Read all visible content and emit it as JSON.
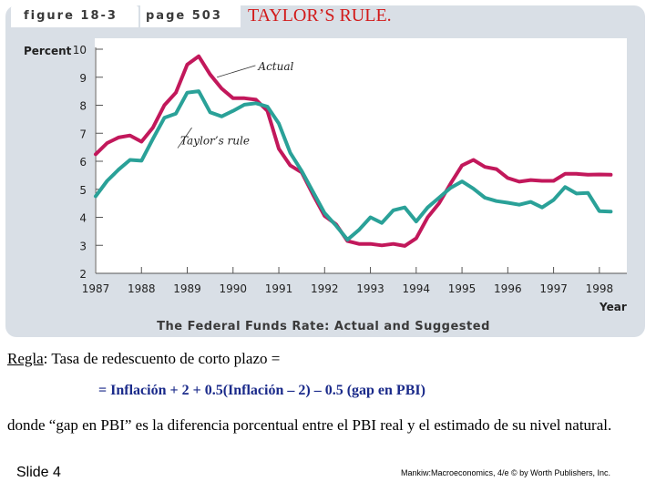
{
  "header": {
    "figure_label": "figure 18-3",
    "page_label": "page 503",
    "slide_title": "TAYLOR’S RULE."
  },
  "chart_data": {
    "type": "line",
    "title": "The Federal Funds Rate: Actual and Suggested",
    "ylabel": "Percent",
    "xlabel": "Year",
    "ylim": [
      2,
      10
    ],
    "xlim": [
      1987,
      1998.6
    ],
    "yticks": [
      2,
      3,
      4,
      5,
      6,
      7,
      8,
      9,
      10
    ],
    "xticks": [
      1987,
      1988,
      1989,
      1990,
      1991,
      1992,
      1993,
      1994,
      1995,
      1996,
      1997,
      1998
    ],
    "series": [
      {
        "name": "Actual",
        "color": "#c2185b",
        "points": [
          [
            1987.0,
            6.25
          ],
          [
            1987.25,
            6.65
          ],
          [
            1987.5,
            6.85
          ],
          [
            1987.75,
            6.92
          ],
          [
            1988.0,
            6.7
          ],
          [
            1988.25,
            7.2
          ],
          [
            1988.5,
            8.0
          ],
          [
            1988.75,
            8.45
          ],
          [
            1989.0,
            9.45
          ],
          [
            1989.25,
            9.75
          ],
          [
            1989.5,
            9.1
          ],
          [
            1989.75,
            8.6
          ],
          [
            1990.0,
            8.25
          ],
          [
            1990.25,
            8.25
          ],
          [
            1990.5,
            8.2
          ],
          [
            1990.75,
            7.8
          ],
          [
            1991.0,
            6.45
          ],
          [
            1991.25,
            5.85
          ],
          [
            1991.5,
            5.6
          ],
          [
            1991.75,
            4.8
          ],
          [
            1992.0,
            4.05
          ],
          [
            1992.25,
            3.75
          ],
          [
            1992.5,
            3.15
          ],
          [
            1992.75,
            3.05
          ],
          [
            1993.0,
            3.05
          ],
          [
            1993.25,
            3.0
          ],
          [
            1993.5,
            3.05
          ],
          [
            1993.75,
            2.98
          ],
          [
            1994.0,
            3.25
          ],
          [
            1994.25,
            4.0
          ],
          [
            1994.5,
            4.5
          ],
          [
            1994.75,
            5.2
          ],
          [
            1995.0,
            5.85
          ],
          [
            1995.25,
            6.05
          ],
          [
            1995.5,
            5.8
          ],
          [
            1995.75,
            5.72
          ],
          [
            1996.0,
            5.4
          ],
          [
            1996.25,
            5.27
          ],
          [
            1996.5,
            5.33
          ],
          [
            1996.75,
            5.3
          ],
          [
            1997.0,
            5.3
          ],
          [
            1997.25,
            5.55
          ],
          [
            1997.5,
            5.55
          ],
          [
            1997.75,
            5.52
          ],
          [
            1998.0,
            5.53
          ],
          [
            1998.25,
            5.52
          ]
        ]
      },
      {
        "name": "Taylor’s rule",
        "color": "#2aa198",
        "points": [
          [
            1987.0,
            4.75
          ],
          [
            1987.25,
            5.3
          ],
          [
            1987.5,
            5.7
          ],
          [
            1987.75,
            6.05
          ],
          [
            1988.0,
            6.02
          ],
          [
            1988.25,
            6.8
          ],
          [
            1988.5,
            7.55
          ],
          [
            1988.75,
            7.7
          ],
          [
            1989.0,
            8.45
          ],
          [
            1989.25,
            8.5
          ],
          [
            1989.5,
            7.75
          ],
          [
            1989.75,
            7.6
          ],
          [
            1990.0,
            7.8
          ],
          [
            1990.25,
            8.02
          ],
          [
            1990.5,
            8.07
          ],
          [
            1990.75,
            7.95
          ],
          [
            1991.0,
            7.35
          ],
          [
            1991.25,
            6.3
          ],
          [
            1991.5,
            5.65
          ],
          [
            1991.75,
            4.9
          ],
          [
            1992.0,
            4.15
          ],
          [
            1992.25,
            3.7
          ],
          [
            1992.5,
            3.2
          ],
          [
            1992.75,
            3.55
          ],
          [
            1993.0,
            4.0
          ],
          [
            1993.25,
            3.8
          ],
          [
            1993.5,
            4.25
          ],
          [
            1993.75,
            4.35
          ],
          [
            1994.0,
            3.85
          ],
          [
            1994.25,
            4.35
          ],
          [
            1994.5,
            4.7
          ],
          [
            1994.75,
            5.05
          ],
          [
            1995.0,
            5.28
          ],
          [
            1995.25,
            5.02
          ],
          [
            1995.5,
            4.7
          ],
          [
            1995.75,
            4.58
          ],
          [
            1996.0,
            4.52
          ],
          [
            1996.25,
            4.45
          ],
          [
            1996.5,
            4.55
          ],
          [
            1996.75,
            4.35
          ],
          [
            1997.0,
            4.62
          ],
          [
            1997.25,
            5.08
          ],
          [
            1997.5,
            4.85
          ],
          [
            1997.75,
            4.87
          ],
          [
            1998.0,
            4.22
          ],
          [
            1998.25,
            4.2
          ]
        ]
      }
    ],
    "annotations": [
      {
        "text": "Actual",
        "series": "Actual"
      },
      {
        "text": "Taylor’s rule",
        "series": "Taylor’s rule"
      }
    ]
  },
  "body": {
    "rule_label": "Regla",
    "rule_text": ": Tasa de redescuento de corto plazo =",
    "formula": "= Inflación + 2 + 0.5(Inflación – 2) – 0.5 (gap en PBI)",
    "where": "donde “gap en PBI” es la diferencia porcentual entre el PBI real y el estimado de su nivel natural."
  },
  "footer": {
    "slide": "Slide 4",
    "credit": "Mankiw:Macroeconomics, 4/e © by Worth Publishers, Inc."
  }
}
